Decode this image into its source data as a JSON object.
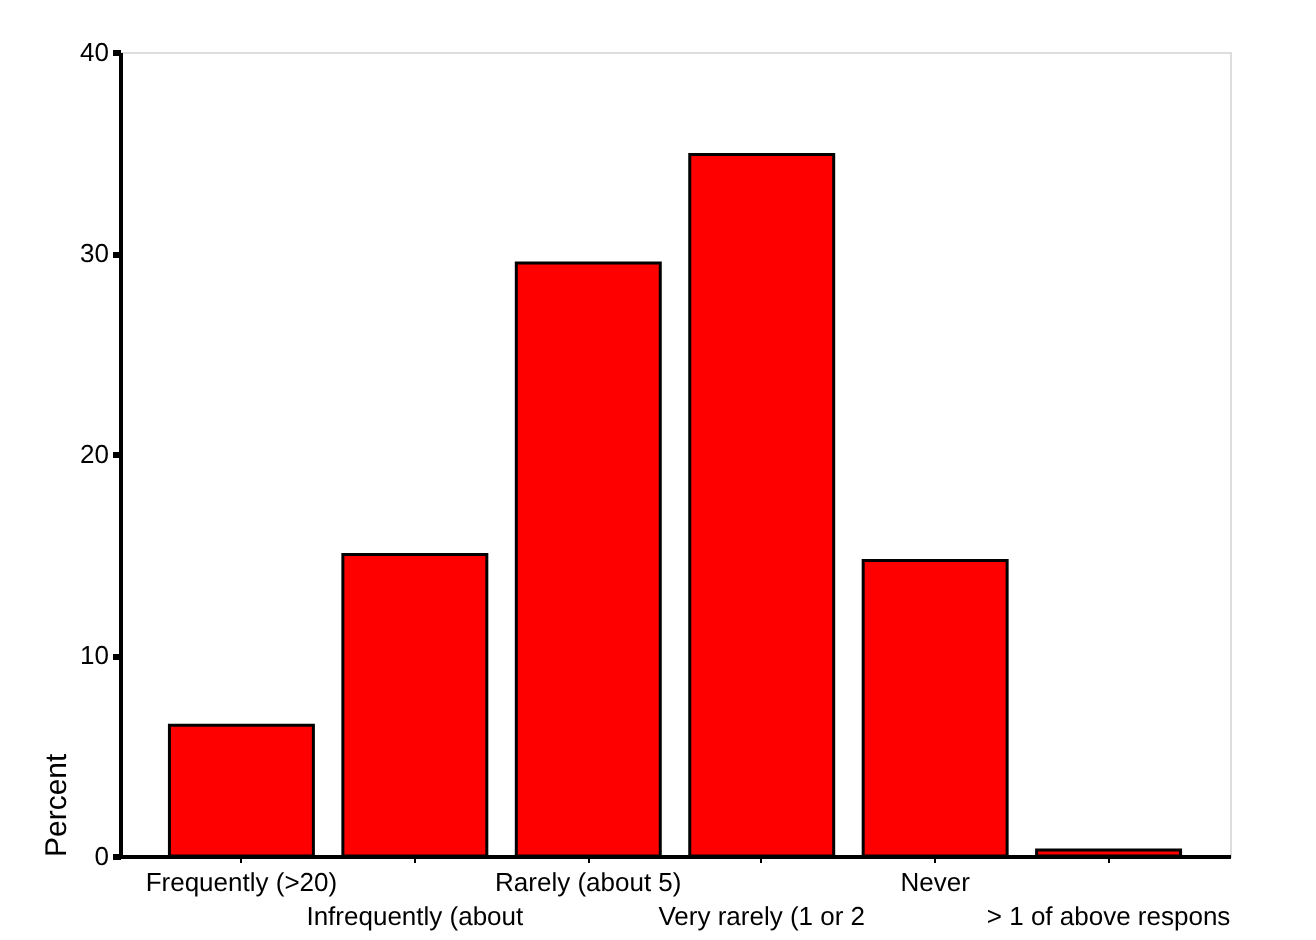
{
  "chart_data": {
    "type": "bar",
    "ylabel": "Percent",
    "categories": [
      "Frequently (>20)",
      "Infrequently (about",
      "Rarely (about 5)",
      "Very rarely (1 or 2",
      "Never",
      "> 1 of above respons"
    ],
    "values": [
      6.5,
      15.0,
      29.5,
      34.9,
      14.7,
      0.3
    ],
    "color": "#ff0000",
    "ylim": [
      0,
      40
    ],
    "yticks": [
      0,
      10,
      20,
      30,
      40
    ],
    "grid": false
  }
}
